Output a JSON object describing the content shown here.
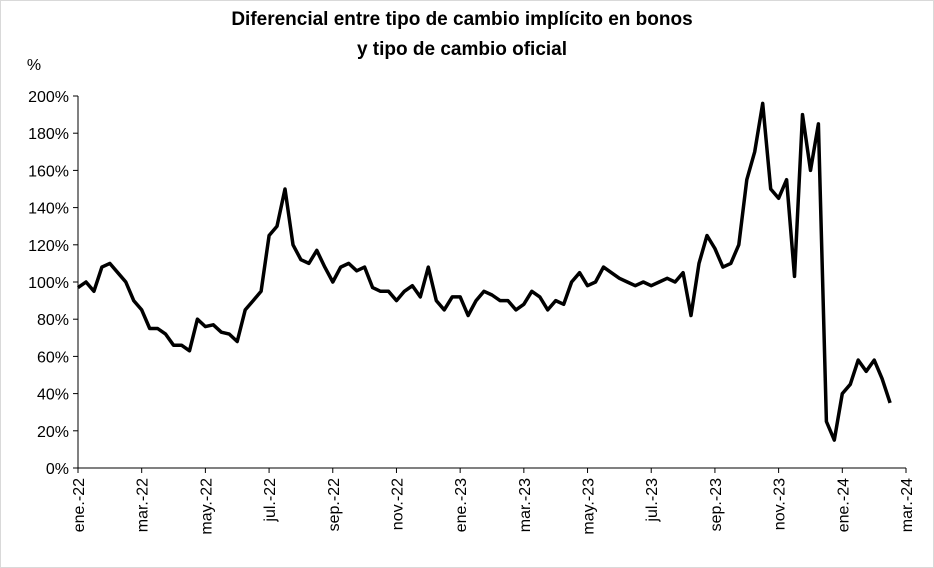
{
  "chart_data": {
    "type": "line",
    "title": [
      "Diferencial entre tipo de cambio implícito en bonos",
      "y tipo de cambio oficial"
    ],
    "y_label": "%",
    "x": [
      0,
      0.25,
      0.5,
      0.75,
      1,
      1.25,
      1.5,
      1.75,
      2,
      2.25,
      2.5,
      2.75,
      3,
      3.25,
      3.5,
      3.75,
      4,
      4.25,
      4.5,
      4.75,
      5,
      5.25,
      5.5,
      5.75,
      6,
      6.25,
      6.5,
      6.75,
      7,
      7.25,
      7.5,
      7.75,
      8,
      8.25,
      8.5,
      8.75,
      9,
      9.25,
      9.5,
      9.75,
      10,
      10.25,
      10.5,
      10.75,
      11,
      11.25,
      11.5,
      11.75,
      12,
      12.25,
      12.5,
      12.75,
      13,
      13.25,
      13.5,
      13.75,
      14,
      14.25,
      14.5,
      14.75,
      15,
      15.25,
      15.5,
      15.75,
      16,
      16.25,
      16.5,
      16.75,
      17,
      17.25,
      17.5,
      17.75,
      18,
      18.25,
      18.5,
      18.75,
      19,
      19.25,
      19.5,
      19.75,
      20,
      20.25,
      20.5,
      20.75,
      21,
      21.25,
      21.5,
      21.75,
      22,
      22.25,
      22.5,
      22.75,
      23,
      23.25,
      23.5,
      23.75,
      24,
      24.25,
      24.5,
      24.75,
      25,
      25.25,
      25.5
    ],
    "series": [
      {
        "color": "#000000",
        "values": [
          97,
          100,
          95,
          108,
          110,
          105,
          100,
          90,
          85,
          75,
          75,
          72,
          66,
          66,
          63,
          80,
          76,
          77,
          73,
          72,
          68,
          85,
          90,
          95,
          125,
          130,
          150,
          120,
          112,
          110,
          117,
          108,
          100,
          108,
          110,
          106,
          108,
          97,
          95,
          95,
          90,
          95,
          98,
          92,
          108,
          90,
          85,
          92,
          92,
          82,
          90,
          95,
          93,
          90,
          90,
          85,
          88,
          95,
          92,
          85,
          90,
          88,
          100,
          105,
          98,
          100,
          108,
          105,
          102,
          100,
          98,
          100,
          98,
          100,
          102,
          100,
          105,
          82,
          110,
          125,
          118,
          108,
          110,
          120,
          155,
          170,
          196,
          150,
          145,
          155,
          103,
          190,
          160,
          185,
          25,
          15,
          40,
          45,
          58,
          52,
          58,
          48,
          35
        ]
      }
    ],
    "xlim": [
      0,
      26
    ],
    "xticks": [
      {
        "value": 0,
        "label": "ene.-22"
      },
      {
        "value": 2,
        "label": "mar.-22"
      },
      {
        "value": 4,
        "label": "may.-22"
      },
      {
        "value": 6,
        "label": "jul.-22"
      },
      {
        "value": 8,
        "label": "sep.-22"
      },
      {
        "value": 10,
        "label": "nov.-22"
      },
      {
        "value": 12,
        "label": "ene.-23"
      },
      {
        "value": 14,
        "label": "mar.-23"
      },
      {
        "value": 16,
        "label": "may.-23"
      },
      {
        "value": 18,
        "label": "jul.-23"
      },
      {
        "value": 20,
        "label": "sep.-23"
      },
      {
        "value": 22,
        "label": "nov.-23"
      },
      {
        "value": 24,
        "label": "ene.-24"
      },
      {
        "value": 26,
        "label": "mar.-24"
      }
    ],
    "ylim": [
      0,
      200
    ],
    "yticks": [
      {
        "value": 0,
        "label": "0%"
      },
      {
        "value": 20,
        "label": "20%"
      },
      {
        "value": 40,
        "label": "40%"
      },
      {
        "value": 60,
        "label": "60%"
      },
      {
        "value": 80,
        "label": "80%"
      },
      {
        "value": 100,
        "label": "100%"
      },
      {
        "value": 120,
        "label": "120%"
      },
      {
        "value": 140,
        "label": "140%"
      },
      {
        "value": 160,
        "label": "160%"
      },
      {
        "value": 180,
        "label": "180%"
      },
      {
        "value": 200,
        "label": "200%"
      }
    ],
    "grid": false
  }
}
